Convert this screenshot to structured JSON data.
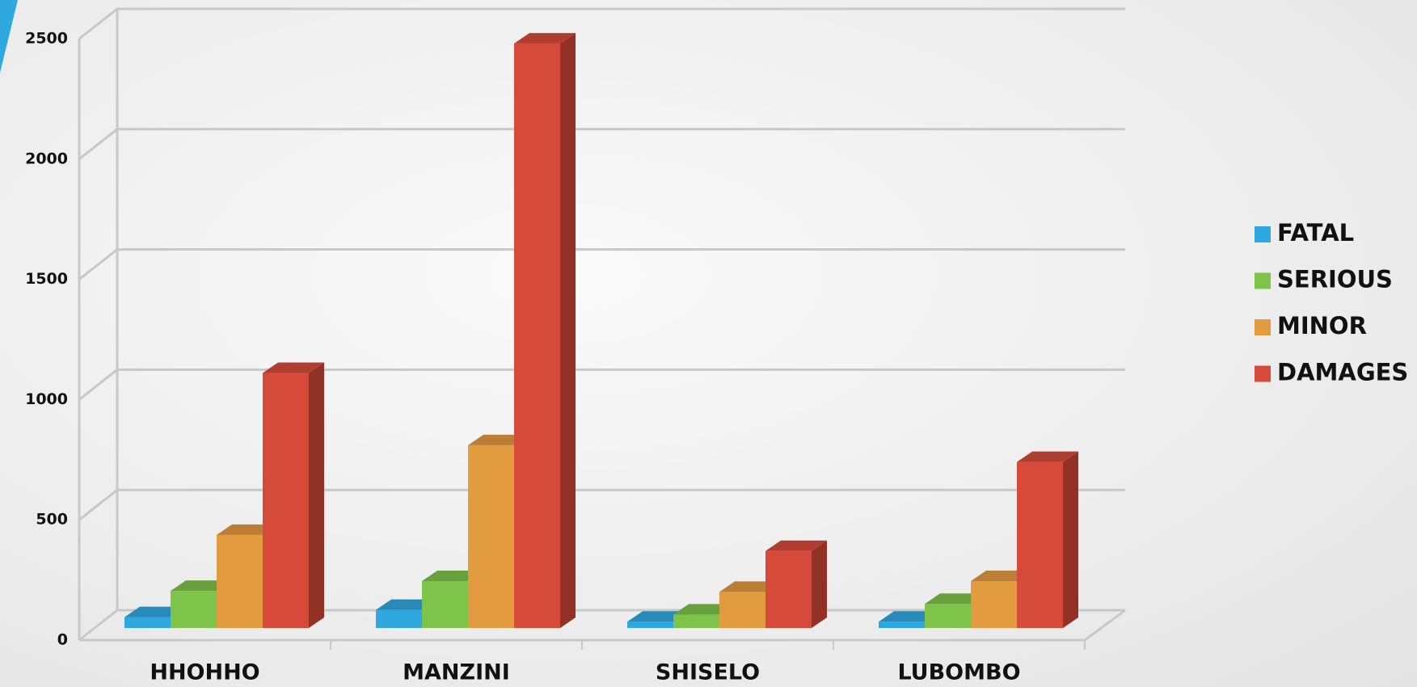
{
  "chart_data": {
    "type": "bar3d",
    "categories": [
      "HHOHHO",
      "MANZINI",
      "SHISELO",
      "LUBOMBO"
    ],
    "series": [
      {
        "name": "FATAL",
        "color": "#2fa8e0",
        "values": [
          45,
          75,
          26,
          26
        ]
      },
      {
        "name": "SERIOUS",
        "color": "#7ec34a",
        "values": [
          154,
          195,
          56,
          100
        ]
      },
      {
        "name": "MINOR",
        "color": "#e39b3f",
        "values": [
          387,
          760,
          150,
          195
        ]
      },
      {
        "name": "DAMAGES",
        "color": "#d64a3a",
        "values": [
          1060,
          2430,
          320,
          690
        ]
      }
    ],
    "ylim": [
      0,
      2500
    ],
    "yticks": [
      0,
      500,
      1000,
      1500,
      2000,
      2500
    ],
    "grid": true,
    "legend": "right"
  }
}
